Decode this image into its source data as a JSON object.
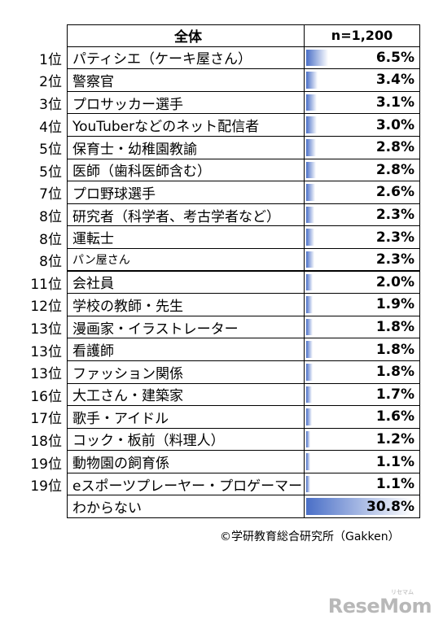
{
  "table": {
    "header_label": "全体",
    "header_n": "n=1,200",
    "rows": [
      {
        "rank": "1位",
        "name": "パティシエ（ケーキ屋さん）",
        "value": "6.5%",
        "pct": 6.5
      },
      {
        "rank": "2位",
        "name": "警察官",
        "value": "3.4%",
        "pct": 3.4
      },
      {
        "rank": "3位",
        "name": "プロサッカー選手",
        "value": "3.1%",
        "pct": 3.1
      },
      {
        "rank": "4位",
        "name": "YouTuberなどのネット配信者",
        "value": "3.0%",
        "pct": 3.0
      },
      {
        "rank": "5位",
        "name": "保育士・幼稚園教諭",
        "value": "2.8%",
        "pct": 2.8
      },
      {
        "rank": "5位",
        "name": "医師（歯科医師含む）",
        "value": "2.8%",
        "pct": 2.8
      },
      {
        "rank": "7位",
        "name": "プロ野球選手",
        "value": "2.6%",
        "pct": 2.6
      },
      {
        "rank": "8位",
        "name": "研究者（科学者、考古学者など）",
        "value": "2.3%",
        "pct": 2.3
      },
      {
        "rank": "8位",
        "name": "運転士",
        "value": "2.3%",
        "pct": 2.3
      },
      {
        "rank": "8位",
        "name": "パン屋さん",
        "value": "2.3%",
        "pct": 2.3
      },
      {
        "rank": "11位",
        "name": "会社員",
        "value": "2.0%",
        "pct": 2.0
      },
      {
        "rank": "12位",
        "name": "学校の教師・先生",
        "value": "1.9%",
        "pct": 1.9
      },
      {
        "rank": "13位",
        "name": "漫画家・イラストレーター",
        "value": "1.8%",
        "pct": 1.8
      },
      {
        "rank": "13位",
        "name": "看護師",
        "value": "1.8%",
        "pct": 1.8
      },
      {
        "rank": "13位",
        "name": "ファッション関係",
        "value": "1.8%",
        "pct": 1.8
      },
      {
        "rank": "16位",
        "name": "大工さん・建築家",
        "value": "1.7%",
        "pct": 1.7
      },
      {
        "rank": "17位",
        "name": "歌手・アイドル",
        "value": "1.6%",
        "pct": 1.6
      },
      {
        "rank": "18位",
        "name": "コック・板前（料理人）",
        "value": "1.2%",
        "pct": 1.2
      },
      {
        "rank": "19位",
        "name": "動物園の飼育係",
        "value": "1.1%",
        "pct": 1.1
      },
      {
        "rank": "19位",
        "name": "eスポーツプレーヤー・プロゲーマー",
        "value": "1.1%",
        "pct": 1.1
      },
      {
        "rank": "",
        "name": "わからない",
        "value": "30.8%",
        "pct": 30.8
      }
    ]
  },
  "source": "©学研教育総合研究所（Gakken）",
  "logo": {
    "text": "ReseMom",
    "sub": "リセマム"
  }
}
